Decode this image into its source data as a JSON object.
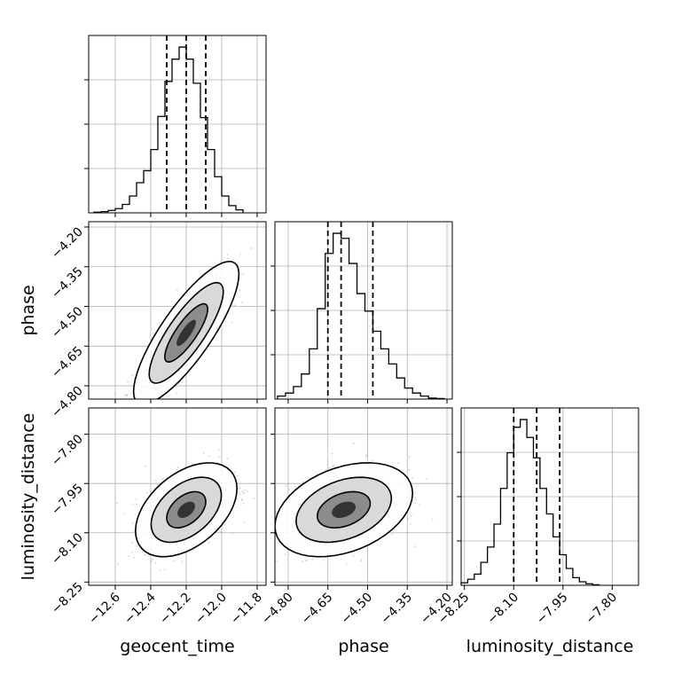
{
  "chart_data": {
    "type": "corner",
    "grid": true,
    "parameters": [
      "geocent_time",
      "phase",
      "luminosity_distance"
    ],
    "x_labels": [
      "geocent_time",
      "phase",
      "luminosity_distance"
    ],
    "y_labels": [
      "",
      "phase",
      "luminosity_distance"
    ],
    "ranges": {
      "geocent_time": [
        -12.75,
        -11.75
      ],
      "phase": [
        -4.85,
        -4.18
      ],
      "luminosity_distance": [
        -8.26,
        -7.72
      ]
    },
    "ticks": {
      "geocent_time": [
        -12.6,
        -12.4,
        -12.2,
        -12.0,
        -11.8
      ],
      "phase": [
        -4.8,
        -4.65,
        -4.5,
        -4.35,
        -4.2
      ],
      "luminosity_distance": [
        -8.25,
        -8.1,
        -7.95,
        -7.8
      ]
    },
    "tick_labels": {
      "geocent_time": [
        "−12.6",
        "−12.4",
        "−12.2",
        "−12.0",
        "−11.8"
      ],
      "phase": [
        "−4.80",
        "−4.65",
        "−4.50",
        "−4.35",
        "−4.20"
      ],
      "luminosity_distance": [
        "−8.25",
        "−8.10",
        "−7.95",
        "−7.80"
      ]
    },
    "y_tick_labels_phase": [
      "−4.80",
      "−4.65",
      "−4.50",
      "−4.35",
      "−4.20"
    ],
    "y_tick_labels_luminosity_distance": [
      "−8.25",
      "−8.10",
      "−7.95",
      "−7.80"
    ],
    "quantiles": {
      "geocent_time": [
        -12.31,
        -12.2,
        -12.09
      ],
      "phase": [
        -4.65,
        -4.6,
        -4.48
      ],
      "luminosity_distance": [
        -8.1,
        -8.03,
        -7.96
      ]
    },
    "histograms": {
      "geocent_time": {
        "edges": [
          -12.72,
          -12.68,
          -12.64,
          -12.6,
          -12.56,
          -12.52,
          -12.48,
          -12.44,
          -12.4,
          -12.36,
          -12.32,
          -12.28,
          -12.24,
          -12.2,
          -12.16,
          -12.12,
          -12.08,
          -12.04,
          -12.0,
          -11.96,
          -11.92,
          -11.88
        ],
        "counts": [
          1,
          2,
          4,
          7,
          14,
          28,
          50,
          70,
          105,
          160,
          218,
          255,
          275,
          255,
          215,
          158,
          105,
          60,
          28,
          12,
          5
        ]
      },
      "phase": {
        "edges": [
          -4.84,
          -4.81,
          -4.78,
          -4.75,
          -4.72,
          -4.69,
          -4.66,
          -4.63,
          -4.6,
          -4.57,
          -4.54,
          -4.51,
          -4.48,
          -4.45,
          -4.42,
          -4.39,
          -4.36,
          -4.33,
          -4.3,
          -4.27,
          -4.24,
          -4.21
        ],
        "counts": [
          6,
          12,
          25,
          50,
          100,
          180,
          290,
          330,
          320,
          270,
          210,
          175,
          135,
          100,
          70,
          42,
          22,
          12,
          6,
          2,
          1
        ]
      },
      "luminosity_distance": {
        "edges": [
          -8.26,
          -8.24,
          -8.22,
          -8.2,
          -8.18,
          -8.16,
          -8.14,
          -8.12,
          -8.1,
          -8.08,
          -8.06,
          -8.04,
          -8.02,
          -8.0,
          -7.98,
          -7.96,
          -7.94,
          -7.92,
          -7.9,
          -7.88,
          -7.86,
          -7.84
        ],
        "counts": [
          5,
          12,
          22,
          45,
          75,
          120,
          190,
          260,
          310,
          325,
          290,
          250,
          190,
          140,
          95,
          60,
          33,
          15,
          7,
          3,
          1
        ]
      }
    },
    "pair_stats": [
      {
        "x": "geocent_time",
        "y": "phase",
        "mean_x": -12.2,
        "mean_y": -4.6,
        "sd_x": 0.11,
        "sd_y": 0.1,
        "rho": 0.82,
        "contour_scales": [
          1.1,
          1.9,
          2.7
        ]
      },
      {
        "x": "geocent_time",
        "y": "luminosity_distance",
        "mean_x": -12.2,
        "mean_y": -8.03,
        "sd_x": 0.11,
        "sd_y": 0.055,
        "rho": 0.45,
        "contour_scales": [
          1.0,
          1.8,
          2.6
        ]
      },
      {
        "x": "phase",
        "y": "luminosity_distance",
        "mean_x": -4.59,
        "mean_y": -8.03,
        "sd_x": 0.1,
        "sd_y": 0.055,
        "rho": 0.35,
        "contour_scales": [
          1.0,
          1.8,
          2.6
        ]
      }
    ]
  }
}
